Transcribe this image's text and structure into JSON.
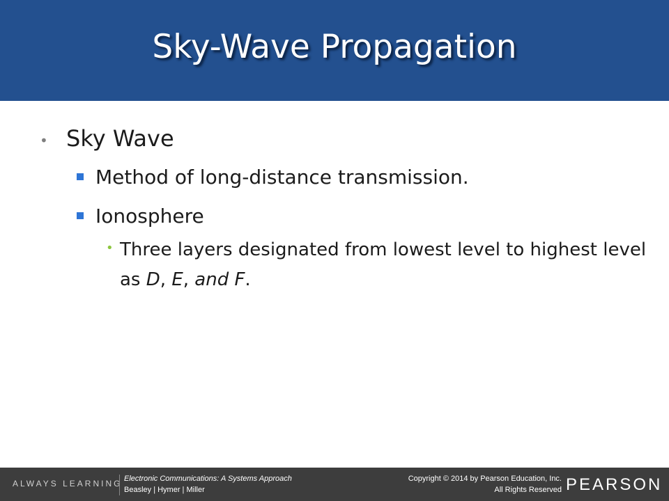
{
  "header": {
    "title": "Sky-Wave Propagation"
  },
  "body": {
    "bullet": "Sky Wave",
    "sub_bullets": [
      "Method of long-distance transmission.",
      "Ionosphere"
    ],
    "detail": [
      "Three layers designated from lowest level to highest level as ",
      "D",
      ", ",
      "E",
      ", ",
      "and F",
      "."
    ]
  },
  "footer": {
    "tagline": "ALWAYS LEARNING",
    "book_title": "Electronic Communications: A Systems Approach",
    "authors": "Beasley | Hymer | Miller",
    "copyright": "Copyright © 2014 by Pearson Education, Inc.",
    "rights": "All Rights Reserved",
    "brand": "PEARSON"
  }
}
